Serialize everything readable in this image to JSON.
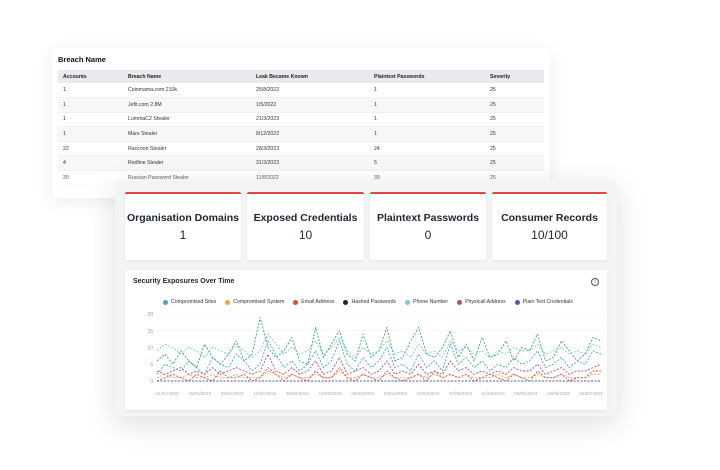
{
  "breach_table": {
    "title": "Breach Name",
    "columns": [
      "Accounts",
      "Breach Name",
      "Leak Became Known",
      "Plaintext Passwords",
      "Severity"
    ],
    "rows": [
      [
        "1",
        "Coinmama.com 210k",
        "25/8/2022",
        "1",
        "25"
      ],
      [
        "1",
        "Jefit.com 2.8M",
        "1/5/2022",
        "1",
        "25"
      ],
      [
        "1",
        "LummaC2 Stealer",
        "21/3/2023",
        "1",
        "25"
      ],
      [
        "1",
        "Mars Stealer",
        "8/12/2022",
        "1",
        "25"
      ],
      [
        "22",
        "Raccoon Stealer",
        "28/3/2023",
        "24",
        "25"
      ],
      [
        "4",
        "Redline Stealer",
        "31/3/2023",
        "5",
        "25"
      ],
      [
        "39",
        "Russian Password Stealer",
        "11/8/2022",
        "39",
        "25"
      ]
    ]
  },
  "stats": [
    {
      "label": "Organisation Domains",
      "value": "1"
    },
    {
      "label": "Exposed Credentials",
      "value": "10"
    },
    {
      "label": "Plaintext Passwords",
      "value": "0"
    },
    {
      "label": "Consumer Records",
      "value": "10/100"
    }
  ],
  "chart_card": {
    "title": "Security Exposures Over Time",
    "info_icon": "info-icon"
  },
  "chart_data": {
    "type": "line",
    "title": "Security Exposures Over Time",
    "ylim": [
      0,
      20
    ],
    "y_ticks": [
      "0",
      "5",
      "10",
      "15",
      "20"
    ],
    "x_labels": [
      "01/01/2023",
      "15/01/2023",
      "29/01/2023",
      "12/02/2023",
      "26/02/2023",
      "12/03/2023",
      "26/03/2023",
      "09/04/2023",
      "23/04/2023",
      "07/05/2023",
      "21/05/2023",
      "04/06/2023",
      "18/06/2023",
      "02/07/2023"
    ],
    "legend_position": "top",
    "series": [
      {
        "name": "Compromised Sites",
        "color": "#4aa3c8",
        "values": [
          2,
          5,
          4,
          3,
          6,
          4,
          2,
          7,
          5,
          4,
          8,
          6,
          3,
          5,
          12,
          8,
          4,
          6,
          3,
          5,
          9,
          4,
          6,
          12,
          5,
          3,
          7,
          4,
          6,
          10,
          4,
          5,
          3,
          8,
          4,
          6,
          3,
          11,
          5,
          7,
          4,
          6,
          3,
          5,
          4,
          7,
          5,
          6,
          9,
          4,
          5,
          7,
          4,
          6,
          5,
          9,
          8
        ]
      },
      {
        "name": "Compromised System",
        "color": "#e3a94a",
        "values": [
          1,
          2,
          1,
          1,
          2,
          1,
          1,
          2,
          1,
          1,
          2,
          1,
          1,
          1,
          3,
          2,
          1,
          2,
          1,
          1,
          2,
          1,
          1,
          3,
          1,
          1,
          2,
          1,
          1,
          2,
          1,
          1,
          1,
          2,
          1,
          2,
          1,
          2,
          1,
          2,
          1,
          1,
          1,
          2,
          1,
          2,
          1,
          1,
          2,
          1,
          1,
          2,
          1,
          1,
          1,
          2,
          2
        ]
      },
      {
        "name": "Email Address",
        "color": "#d94a3c",
        "values": [
          0,
          1,
          2,
          1,
          0,
          2,
          1,
          0,
          3,
          1,
          1,
          2,
          0,
          1,
          4,
          2,
          0,
          2,
          1,
          0,
          3,
          1,
          1,
          4,
          1,
          0,
          2,
          1,
          0,
          3,
          1,
          0,
          1,
          2,
          0,
          3,
          1,
          2,
          1,
          2,
          0,
          1,
          2,
          1,
          0,
          2,
          1,
          0,
          3,
          1,
          1,
          2,
          0,
          1,
          1,
          3,
          3
        ]
      },
      {
        "name": "Hashed Passwords",
        "color": "#1e2530",
        "values": [
          0,
          0,
          0,
          0,
          0,
          0,
          0,
          0,
          0,
          0,
          0,
          0,
          0,
          0,
          0,
          0,
          0,
          0,
          0,
          0,
          0,
          0,
          0,
          0,
          0,
          0,
          0,
          0,
          0,
          0,
          0,
          0,
          0,
          0,
          0,
          0,
          0,
          0,
          0,
          0,
          0,
          0,
          0,
          0,
          0,
          0,
          0,
          0,
          0,
          0,
          0,
          0,
          0,
          0,
          0,
          0,
          0
        ]
      },
      {
        "name": "Phone Number",
        "color": "#7cc6d6",
        "values": [
          9,
          11,
          10,
          8,
          10,
          9,
          7,
          10,
          9,
          8,
          11,
          9,
          7,
          9,
          14,
          11,
          8,
          10,
          8,
          9,
          12,
          8,
          10,
          13,
          9,
          7,
          10,
          8,
          9,
          12,
          8,
          9,
          7,
          11,
          8,
          9,
          7,
          12,
          9,
          10,
          8,
          9,
          7,
          9,
          8,
          10,
          9,
          9,
          11,
          8,
          9,
          10,
          8,
          9,
          8,
          11,
          10
        ]
      },
      {
        "name": "Physicall Address",
        "color": "#c04a6c",
        "values": [
          3,
          2,
          3,
          4,
          2,
          3,
          2,
          4,
          2,
          3,
          4,
          3,
          2,
          3,
          8,
          3,
          2,
          4,
          2,
          3,
          6,
          2,
          3,
          7,
          2,
          3,
          4,
          2,
          3,
          6,
          2,
          3,
          2,
          5,
          2,
          3,
          2,
          6,
          3,
          4,
          2,
          3,
          2,
          3,
          2,
          4,
          3,
          3,
          5,
          2,
          3,
          4,
          2,
          3,
          3,
          4,
          5
        ]
      },
      {
        "name": "Plain Text Credentials",
        "color": "#4a56c8",
        "values": [
          0,
          0,
          0,
          0,
          0,
          0,
          0,
          0,
          0,
          0,
          0,
          0,
          0,
          0,
          0,
          0,
          0,
          0,
          0,
          0,
          0,
          0,
          0,
          0,
          0,
          0,
          0,
          0,
          0,
          0,
          0,
          0,
          0,
          0,
          0,
          0,
          0,
          0,
          0,
          0,
          0,
          0,
          0,
          0,
          0,
          0,
          0,
          0,
          0,
          0,
          0,
          0,
          0,
          0,
          0,
          0,
          0
        ]
      }
    ],
    "peak_series": {
      "color": "#3aa56a",
      "values": [
        6,
        8,
        5,
        9,
        6,
        4,
        11,
        7,
        5,
        8,
        12,
        6,
        8,
        19,
        10,
        7,
        9,
        13,
        6,
        5,
        16,
        7,
        11,
        15,
        8,
        6,
        14,
        7,
        9,
        16,
        6,
        7,
        12,
        16,
        8,
        7,
        10,
        15,
        7,
        11,
        6,
        13,
        7,
        8,
        12,
        6,
        10,
        9,
        14,
        6,
        7,
        12,
        9,
        6,
        8,
        13,
        12
      ]
    }
  }
}
